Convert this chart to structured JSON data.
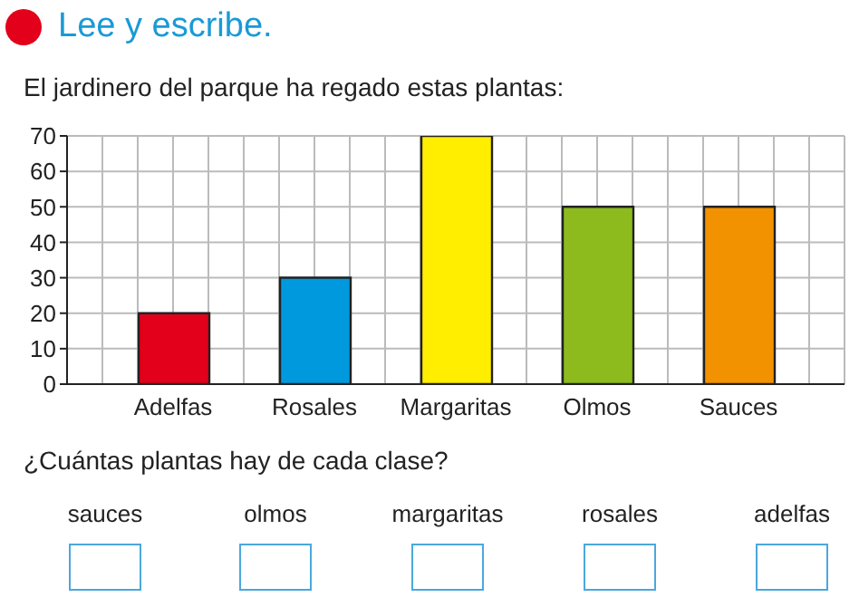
{
  "chart_data": {
    "type": "bar",
    "title": "Lee y escribe.",
    "subtitle": "El jardinero del parque ha regado estas plantas:",
    "categories": [
      "Adelfas",
      "Rosales",
      "Margaritas",
      "Olmos",
      "Sauces"
    ],
    "values": [
      20,
      30,
      70,
      50,
      50
    ],
    "colors": [
      "#e2001a",
      "#0099dd",
      "#ffee00",
      "#8dbb1d",
      "#f39200"
    ],
    "ylim": [
      0,
      70
    ],
    "yticks": [
      0,
      10,
      20,
      30,
      40,
      50,
      60,
      70
    ],
    "grid": true,
    "annotations": [
      "¿Cuántas plantas hay de cada clase?",
      "sauces",
      "olmos",
      "margaritas",
      "rosales",
      "adelfas"
    ]
  }
}
